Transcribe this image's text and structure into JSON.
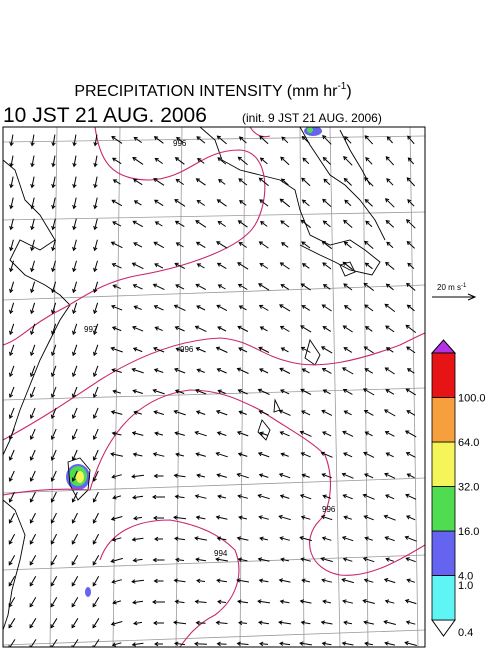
{
  "title": {
    "text": "PRECIPITATION INTENSITY (mm hr",
    "sup": "-1",
    "close": ")"
  },
  "valid_time": "10 JST 21 AUG. 2006",
  "init_time": "(init. 9 JST 21 AUG. 2006)",
  "wind_scale": {
    "text": "20 m s",
    "sup": "-1"
  },
  "colorbar": {
    "levels": [
      "0.4",
      "1.0",
      "4.0",
      "16.0",
      "32.0",
      "64.0",
      "100.0"
    ],
    "colors": [
      "#5ff5f5",
      "#6464f0",
      "#50dc50",
      "#f5f55a",
      "#f5a03c",
      "#e61414"
    ],
    "under_color": "#ffffff",
    "over_color": "#b432e6"
  },
  "contour_labels": [
    "996",
    "997",
    "996",
    "996",
    "994"
  ]
}
